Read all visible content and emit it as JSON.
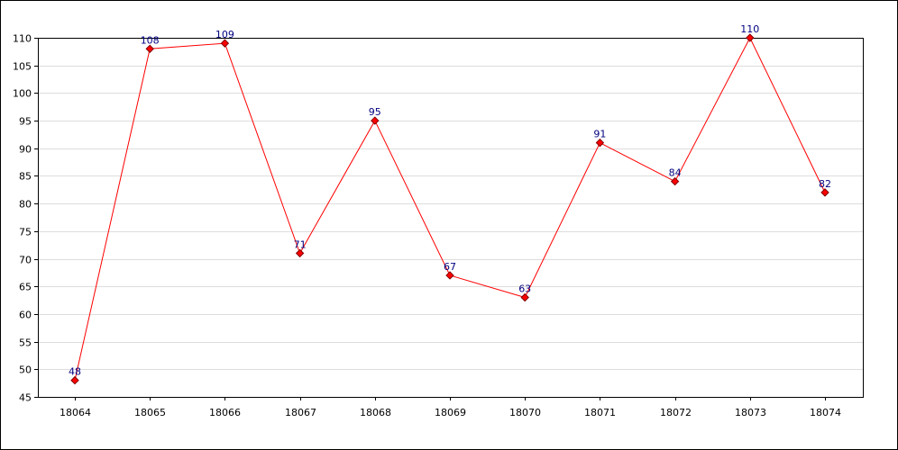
{
  "chart_data": {
    "type": "line",
    "title": "",
    "xlabel": "",
    "ylabel": "",
    "categories": [
      "18064",
      "18065",
      "18066",
      "18067",
      "18068",
      "18069",
      "18070",
      "18071",
      "18072",
      "18073",
      "18074"
    ],
    "series": [
      {
        "values": [
          48,
          108,
          109,
          71,
          95,
          67,
          63,
          91,
          84,
          110,
          82
        ]
      }
    ],
    "ylim": [
      45,
      110
    ],
    "y_ticks": [
      45,
      50,
      55,
      60,
      65,
      70,
      75,
      80,
      85,
      90,
      95,
      100,
      105,
      110
    ],
    "grid": true,
    "legend": "none",
    "show_data_labels": true,
    "colors": {
      "line": "#ff0000",
      "marker_fill": "#ff0000",
      "marker_stroke": "#800000",
      "data_label": "#000080",
      "grid": "#dddddd",
      "axis": "#000000"
    }
  }
}
